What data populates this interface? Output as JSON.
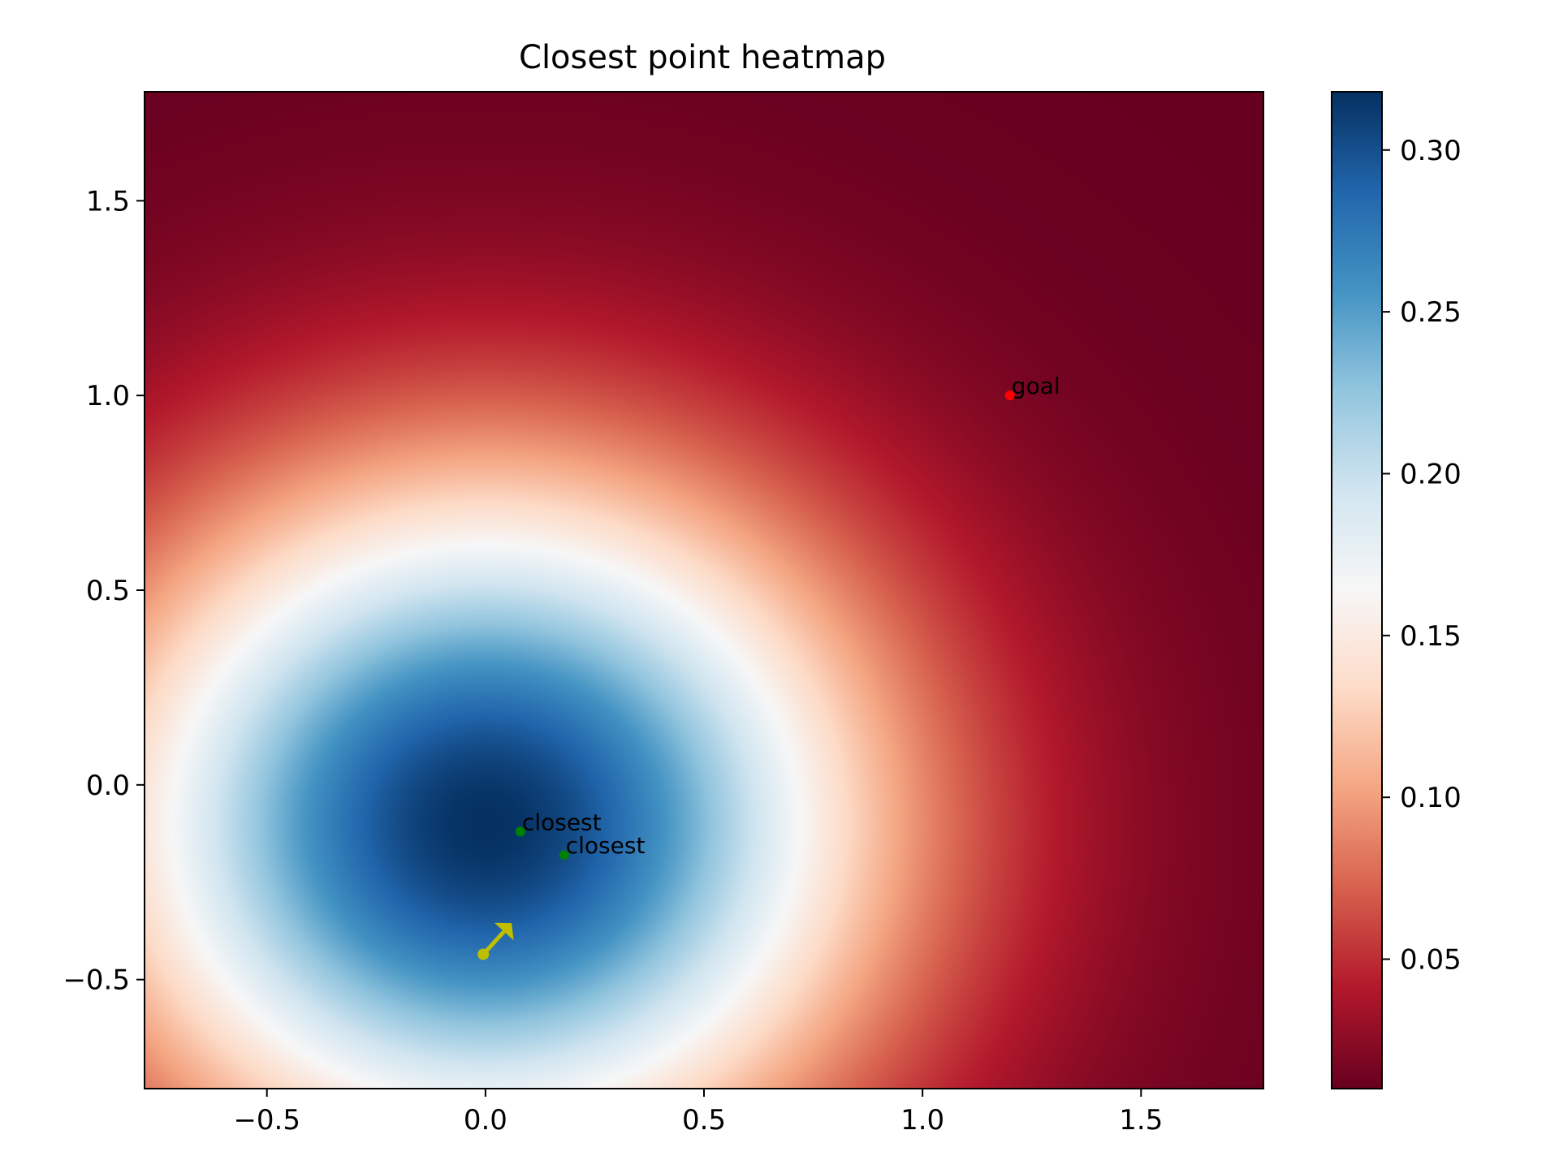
{
  "chart_data": {
    "type": "heatmap",
    "title": "Closest point heatmap",
    "xlabel": "",
    "ylabel": "",
    "xlim": [
      -0.78,
      1.78
    ],
    "ylim": [
      -0.78,
      1.78
    ],
    "xticks": [
      -0.5,
      0.0,
      0.5,
      1.0,
      1.5
    ],
    "xtick_labels": [
      "−0.5",
      "0.0",
      "0.5",
      "1.0",
      "1.5"
    ],
    "yticks": [
      -0.5,
      0.0,
      0.5,
      1.0,
      1.5
    ],
    "ytick_labels": [
      "−0.5",
      "0.0",
      "0.5",
      "1.0",
      "1.5"
    ],
    "colormap": "RdBu",
    "colorbar": {
      "range": [
        0.01,
        0.318
      ],
      "ticks": [
        0.05,
        0.1,
        0.15,
        0.2,
        0.25,
        0.3
      ],
      "tick_labels": [
        "0.05",
        "0.10",
        "0.15",
        "0.20",
        "0.25",
        "0.30"
      ]
    },
    "field": {
      "center": [
        0.0,
        -0.1
      ],
      "peak": 0.318,
      "sigma": 0.61,
      "floor": 0.01
    },
    "points": [
      {
        "label": "goal",
        "x": 1.2,
        "y": 1.0,
        "color": "#ff0000"
      },
      {
        "label": "closest",
        "x": 0.08,
        "y": -0.12,
        "color": "#008000"
      },
      {
        "label": "closest",
        "x": 0.18,
        "y": -0.18,
        "color": "#008000"
      }
    ],
    "agent": {
      "x": -0.005,
      "y": -0.435,
      "dx": 0.065,
      "dy": 0.08,
      "color": "#bfbf00"
    }
  }
}
